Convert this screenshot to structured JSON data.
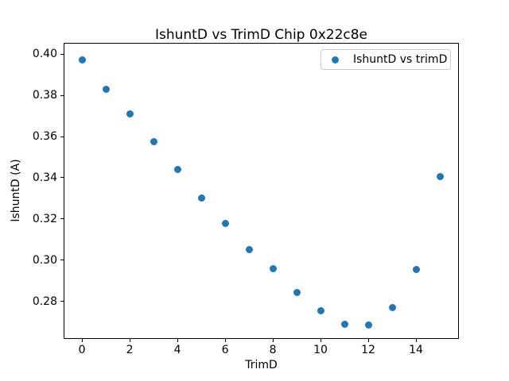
{
  "figure": {
    "title": "IshuntD vs TrimD Chip 0x22c8e",
    "x_axis_label": "TrimD",
    "y_axis_label": "IshuntD (A)"
  },
  "legend": {
    "label": "IshuntD vs trimD",
    "marker": "circle-marker-icon"
  },
  "colors": {
    "marker": "#1f77b4",
    "spine": "#000000",
    "legend_border": "#cccccc",
    "background": "#ffffff"
  },
  "chart_data": {
    "type": "scatter",
    "title": "IshuntD vs TrimD Chip 0x22c8e",
    "xlabel": "TrimD",
    "ylabel": "IshuntD (A)",
    "series_name": "IshuntD vs trimD",
    "x": [
      0,
      1,
      2,
      3,
      4,
      5,
      6,
      7,
      8,
      9,
      10,
      11,
      12,
      13,
      14,
      15
    ],
    "y": [
      0.397,
      0.383,
      0.371,
      0.3575,
      0.344,
      0.33,
      0.318,
      0.305,
      0.296,
      0.2845,
      0.2755,
      0.269,
      0.2685,
      0.277,
      0.2955,
      0.3405
    ],
    "xlim": [
      -0.77,
      15.8
    ],
    "ylim": [
      0.2619,
      0.4054
    ],
    "x_ticks": [
      0,
      2,
      4,
      6,
      8,
      10,
      12,
      14
    ],
    "x_tick_labels": [
      "0",
      "2",
      "4",
      "6",
      "8",
      "10",
      "12",
      "14"
    ],
    "y_ticks": [
      0.4,
      0.38,
      0.36,
      0.34,
      0.32,
      0.3,
      0.28
    ],
    "y_tick_labels": [
      "0.40",
      "0.38",
      "0.36",
      "0.34",
      "0.32",
      "0.30",
      "0.28"
    ],
    "marker_color": "#1f77b4",
    "marker_size_px": 9,
    "grid": false,
    "legend_position": "upper right"
  }
}
